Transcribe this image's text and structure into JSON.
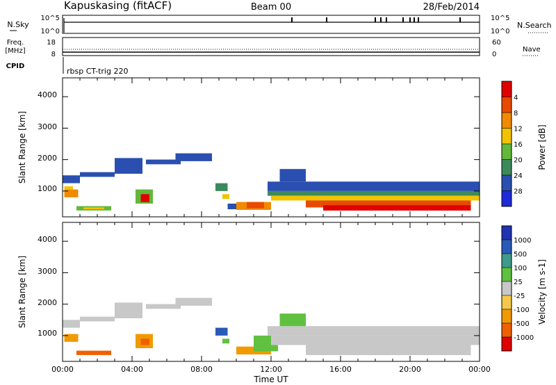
{
  "header": {
    "station": "Kapuskasing (fitACF)",
    "beam": "Beam 00",
    "date": "28/Feb/2014"
  },
  "nsky_panel": {
    "left_label": "N.Sky",
    "right_label": "N.Search",
    "left_ticks": [
      "10^5",
      "10^0"
    ],
    "right_ticks": [
      "10^5",
      "10^0"
    ]
  },
  "freq_panel": {
    "left_label_line1": "Freq.",
    "left_label_line2": "[MHz]",
    "right_label": "Nave",
    "left_ticks": [
      "18",
      "8"
    ],
    "right_ticks": [
      "60",
      "0"
    ],
    "cpid_label": "CPID",
    "cpid_text": "rbsp CT-trig 220"
  },
  "colors": {
    "power": [
      "#1f2bd8",
      "#2a4fb0",
      "#3c8a5a",
      "#62b83a",
      "#f2c300",
      "#f08a00",
      "#e84a00",
      "#e00000"
    ],
    "velocity": [
      "#e00000",
      "#f06000",
      "#f09a00",
      "#f4c84a",
      "#c8c8c8",
      "#60c040",
      "#3f9a8a",
      "#2a5ab8",
      "#2033b0"
    ]
  },
  "chart_data": [
    {
      "type": "heatmap",
      "name": "power",
      "xlabel": "",
      "ylabel": "Slant Range [km]",
      "x_range": [
        "00:00",
        "24:00"
      ],
      "ylim": [
        180,
        4600
      ],
      "y_ticks": [
        "1000",
        "2000",
        "3000",
        "4000"
      ],
      "colorbar_label": "Power [dB]",
      "colorbar_ticks": [
        "4",
        "8",
        "12",
        "16",
        "20",
        "24",
        "28"
      ],
      "regions": [
        {
          "t": [
            0.0,
            1.0
          ],
          "r": [
            1250,
            1500
          ],
          "level": 1
        },
        {
          "t": [
            0.1,
            0.9
          ],
          "r": [
            800,
            1050
          ],
          "level": 5
        },
        {
          "t": [
            0.1,
            0.6
          ],
          "r": [
            1050,
            1150
          ],
          "level": 4
        },
        {
          "t": [
            1.0,
            3.0
          ],
          "r": [
            1450,
            1600
          ],
          "level": 1
        },
        {
          "t": [
            0.8,
            2.8
          ],
          "r": [
            380,
            520
          ],
          "level": 3
        },
        {
          "t": [
            1.2,
            2.4
          ],
          "r": [
            420,
            480
          ],
          "level": 4
        },
        {
          "t": [
            3.0,
            4.6
          ],
          "r": [
            1550,
            2050
          ],
          "level": 1
        },
        {
          "t": [
            4.2,
            5.2
          ],
          "r": [
            600,
            1050
          ],
          "level": 3
        },
        {
          "t": [
            4.5,
            5.0
          ],
          "r": [
            650,
            900
          ],
          "level": 7
        },
        {
          "t": [
            4.8,
            6.8
          ],
          "r": [
            1850,
            2000
          ],
          "level": 1
        },
        {
          "t": [
            6.5,
            8.6
          ],
          "r": [
            1950,
            2200
          ],
          "level": 1
        },
        {
          "t": [
            8.8,
            9.5
          ],
          "r": [
            1000,
            1250
          ],
          "level": 2
        },
        {
          "t": [
            9.2,
            9.6
          ],
          "r": [
            750,
            900
          ],
          "level": 4
        },
        {
          "t": [
            9.5,
            11.2
          ],
          "r": [
            420,
            600
          ],
          "level": 1
        },
        {
          "t": [
            10.0,
            12.0
          ],
          "r": [
            400,
            650
          ],
          "level": 5
        },
        {
          "t": [
            10.6,
            11.6
          ],
          "r": [
            450,
            650
          ],
          "level": 6
        },
        {
          "t": [
            11.8,
            24.0
          ],
          "r": [
            1000,
            1300
          ],
          "level": 1
        },
        {
          "t": [
            11.8,
            24.0
          ],
          "r": [
            850,
            1000
          ],
          "level": 2
        },
        {
          "t": [
            12.0,
            24.0
          ],
          "r": [
            700,
            850
          ],
          "level": 4
        },
        {
          "t": [
            12.5,
            14.0
          ],
          "r": [
            1300,
            1700
          ],
          "level": 1
        },
        {
          "t": [
            14.0,
            23.5
          ],
          "r": [
            480,
            700
          ],
          "level": 6
        },
        {
          "t": [
            15.0,
            23.5
          ],
          "r": [
            380,
            550
          ],
          "level": 7
        }
      ]
    },
    {
      "type": "heatmap",
      "name": "velocity",
      "xlabel": "Time UT",
      "ylabel": "Slant Range [km]",
      "x_range": [
        "00:00",
        "24:00"
      ],
      "x_ticks": [
        "00:00",
        "04:00",
        "08:00",
        "12:00",
        "16:00",
        "20:00",
        "00:00"
      ],
      "ylim": [
        180,
        4600
      ],
      "y_ticks": [
        "1000",
        "2000",
        "3000",
        "4000"
      ],
      "colorbar_label": "Velocity [m s-1]",
      "colorbar_ticks": [
        "1000",
        "500",
        "100",
        "25",
        "-25",
        "-100",
        "-500",
        "-1000"
      ],
      "regions": [
        {
          "t": [
            0.0,
            1.0
          ],
          "r": [
            1250,
            1500
          ],
          "level": 4
        },
        {
          "t": [
            0.1,
            0.9
          ],
          "r": [
            800,
            1050
          ],
          "level": 2
        },
        {
          "t": [
            1.0,
            3.0
          ],
          "r": [
            1450,
            1600
          ],
          "level": 4
        },
        {
          "t": [
            0.8,
            2.8
          ],
          "r": [
            380,
            520
          ],
          "level": 1
        },
        {
          "t": [
            3.0,
            4.6
          ],
          "r": [
            1550,
            2050
          ],
          "level": 4
        },
        {
          "t": [
            4.2,
            5.2
          ],
          "r": [
            600,
            1050
          ],
          "level": 2
        },
        {
          "t": [
            4.5,
            5.0
          ],
          "r": [
            700,
            900
          ],
          "level": 1
        },
        {
          "t": [
            4.8,
            6.8
          ],
          "r": [
            1850,
            2000
          ],
          "level": 4
        },
        {
          "t": [
            6.5,
            8.6
          ],
          "r": [
            1950,
            2200
          ],
          "level": 4
        },
        {
          "t": [
            8.8,
            9.5
          ],
          "r": [
            1000,
            1250
          ],
          "level": 7
        },
        {
          "t": [
            9.2,
            9.6
          ],
          "r": [
            750,
            900
          ],
          "level": 5
        },
        {
          "t": [
            10.0,
            12.0
          ],
          "r": [
            400,
            650
          ],
          "level": 2
        },
        {
          "t": [
            11.0,
            12.4
          ],
          "r": [
            500,
            1000
          ],
          "level": 5
        },
        {
          "t": [
            11.8,
            24.0
          ],
          "r": [
            1000,
            1300
          ],
          "level": 4
        },
        {
          "t": [
            12.0,
            24.0
          ],
          "r": [
            700,
            1000
          ],
          "level": 4
        },
        {
          "t": [
            12.5,
            14.0
          ],
          "r": [
            1300,
            1700
          ],
          "level": 5
        },
        {
          "t": [
            14.0,
            23.5
          ],
          "r": [
            380,
            700
          ],
          "level": 4
        }
      ]
    }
  ]
}
